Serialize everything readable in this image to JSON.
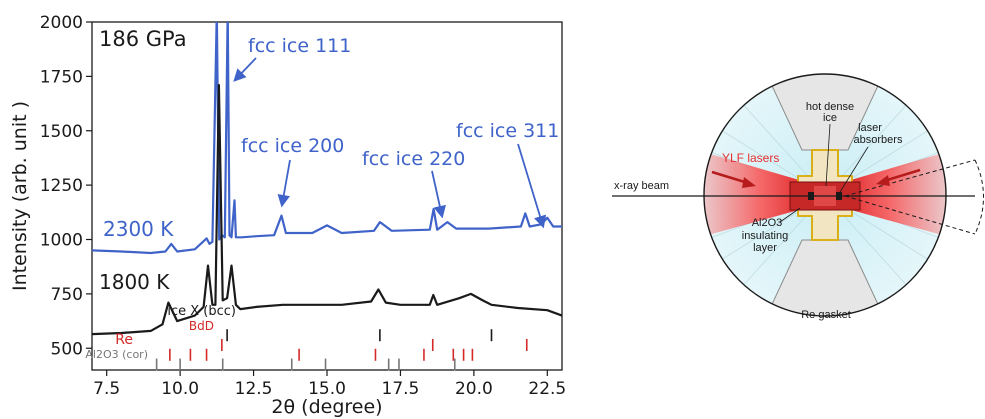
{
  "chart_data": {
    "type": "line",
    "xlabel": "2θ (degree)",
    "ylabel": "Intensity (arb. unit )",
    "xlim": [
      7.0,
      23.0
    ],
    "ylim": [
      400,
      2000
    ],
    "xticks": [
      "7.5",
      "10.0",
      "12.5",
      "15.0",
      "17.5",
      "20.0",
      "22.5"
    ],
    "xtick_values": [
      7.5,
      10.0,
      12.5,
      15.0,
      17.5,
      20.0,
      22.5
    ],
    "yticks": [
      "500",
      "750",
      "1000",
      "1250",
      "1500",
      "1750",
      "2000"
    ],
    "ytick_values": [
      500,
      750,
      1000,
      1250,
      1500,
      1750,
      2000
    ],
    "grid": false,
    "pressure_label": "186 GPa",
    "series": [
      {
        "name": "2300 K",
        "color": "#3f63c9",
        "x": [
          7.0,
          8.0,
          9.0,
          9.5,
          9.7,
          9.9,
          10.5,
          10.9,
          11.0,
          11.1,
          11.25,
          11.33,
          11.42,
          11.52,
          11.62,
          11.68,
          11.75,
          11.85,
          11.9,
          12.1,
          12.6,
          13.2,
          13.45,
          13.6,
          14.5,
          15.0,
          15.5,
          16.6,
          16.8,
          17.2,
          18.5,
          18.63,
          18.75,
          19.1,
          19.4,
          20.5,
          21.6,
          21.75,
          21.9,
          22.3,
          22.5,
          22.7,
          23.0
        ],
        "y": [
          950,
          945,
          938,
          945,
          980,
          945,
          955,
          1005,
          980,
          990,
          2050,
          1000,
          1020,
          1010,
          2050,
          1020,
          1010,
          1180,
          1010,
          1010,
          1015,
          1020,
          1110,
          1030,
          1030,
          1065,
          1030,
          1040,
          1080,
          1040,
          1045,
          1140,
          1045,
          1080,
          1050,
          1050,
          1060,
          1120,
          1060,
          1070,
          1100,
          1060,
          1060
        ]
      },
      {
        "name": "1800 K",
        "color": "#1a1a1a",
        "x": [
          7.0,
          8.0,
          9.0,
          9.4,
          9.6,
          9.9,
          10.5,
          10.8,
          10.95,
          11.1,
          11.2,
          11.32,
          11.45,
          11.6,
          11.75,
          11.9,
          12.05,
          12.6,
          13.5,
          14.5,
          15.5,
          16.5,
          16.75,
          17.0,
          17.5,
          18.5,
          18.62,
          18.75,
          19.5,
          19.9,
          20.3,
          20.6,
          21.5,
          22.5,
          23.0
        ],
        "y": [
          565,
          570,
          580,
          610,
          710,
          625,
          650,
          690,
          880,
          700,
          700,
          1710,
          720,
          730,
          880,
          700,
          680,
          690,
          700,
          700,
          700,
          715,
          770,
          710,
          700,
          700,
          745,
          700,
          730,
          750,
          720,
          700,
          685,
          675,
          650
        ]
      }
    ],
    "peak_labels": [
      {
        "text": "fcc ice 111",
        "x": 11.62
      },
      {
        "text": "fcc ice 200",
        "x": 13.45
      },
      {
        "text": "fcc ice 220",
        "x": 19.1
      },
      {
        "text": "fcc ice 311",
        "x": 22.45
      }
    ],
    "reflection_rows": [
      {
        "label": "ice X (bcc)",
        "color": "#1a1a1a",
        "y": 560,
        "positions": [
          11.6,
          16.8,
          20.6
        ]
      },
      {
        "label": "BdD",
        "color": "#d42a2a",
        "y": 515,
        "positions": [
          11.42,
          18.6,
          21.8
        ]
      },
      {
        "label": "Re",
        "color": "#d42a2a",
        "y": 470,
        "positions": [
          9.65,
          10.35,
          10.9,
          14.05,
          16.65,
          18.3,
          19.3,
          19.65,
          19.95
        ]
      },
      {
        "label": "Al2O3 (cor)",
        "color": "#777777",
        "y": 425,
        "positions": [
          9.2,
          10.0,
          11.45,
          13.8,
          14.95,
          17.1,
          17.45,
          19.35
        ]
      }
    ]
  },
  "diagram": {
    "beam_label": "x-ray beam",
    "laser_label": "YLF lasers",
    "sample_label_line1": "hot dense",
    "sample_label_line2": "ice",
    "absorber_label_line1": "laser",
    "absorber_label_line2": "absorbers",
    "insulating_label_line1": "Al2O3",
    "insulating_label_line2": "insulating",
    "insulating_label_line3": "layer",
    "gasket_label": "Re gasket",
    "laser_color": "#e83030",
    "sample_color": "#c62828",
    "insulator_color": "#e6b800"
  }
}
